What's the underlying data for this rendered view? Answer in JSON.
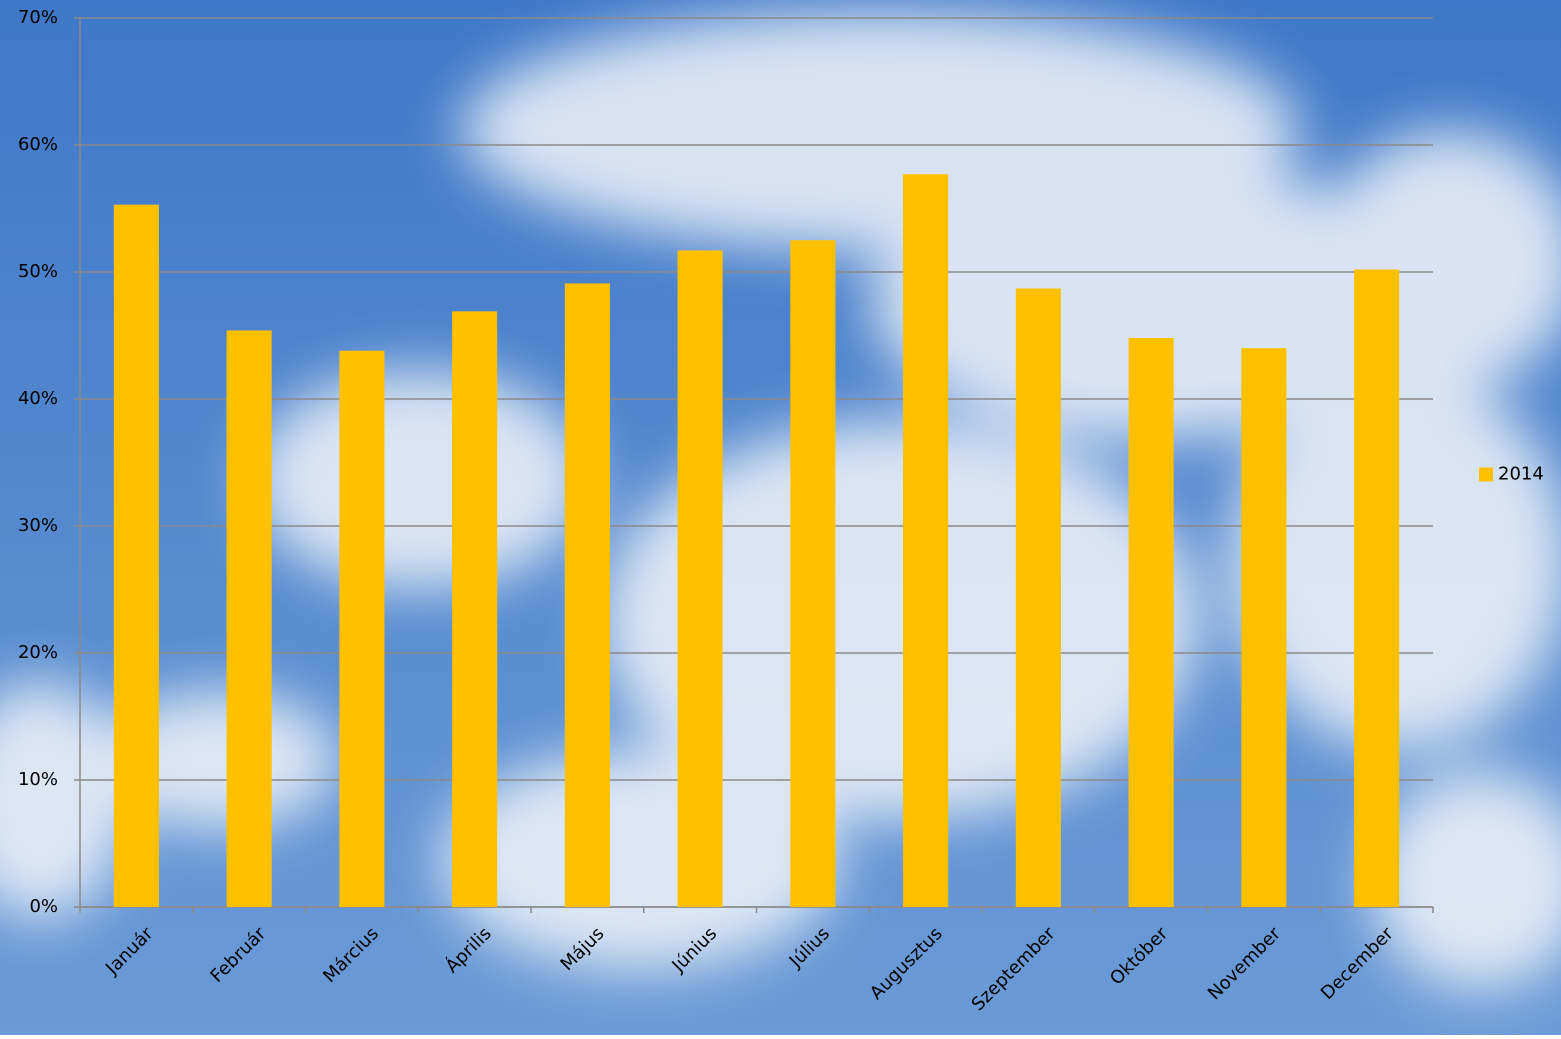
{
  "chart_data": {
    "type": "bar",
    "categories": [
      "Január",
      "Február",
      "Március",
      "Április",
      "Május",
      "Június",
      "Július",
      "Augusztus",
      "Szeptember",
      "Október",
      "November",
      "December"
    ],
    "series": [
      {
        "name": "2014",
        "color": "#ffc000",
        "values": [
          55.3,
          45.4,
          43.8,
          46.9,
          49.1,
          51.7,
          52.5,
          57.7,
          48.7,
          44.8,
          44.0,
          50.2
        ]
      }
    ],
    "ylim": [
      0,
      70
    ],
    "yticks": [
      {
        "value": 0,
        "label": "0%"
      },
      {
        "value": 10,
        "label": "10%"
      },
      {
        "value": 20,
        "label": "20%"
      },
      {
        "value": 30,
        "label": "30%"
      },
      {
        "value": 40,
        "label": "40%"
      },
      {
        "value": 50,
        "label": "50%"
      },
      {
        "value": 60,
        "label": "60%"
      },
      {
        "value": 70,
        "label": "70%"
      }
    ],
    "grid": true,
    "legend": "right"
  }
}
